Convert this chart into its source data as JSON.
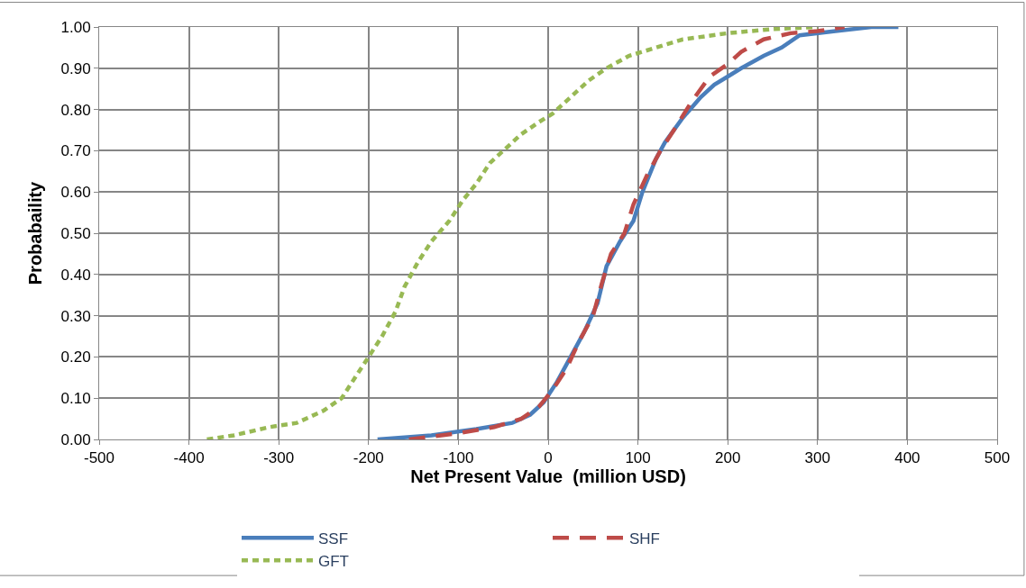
{
  "chart_data": {
    "type": "line",
    "xlabel": "Net Present Value  (million USD)",
    "ylabel": "Probabaility",
    "xlim": [
      -500,
      500
    ],
    "xticks": [
      -500,
      -400,
      -300,
      -200,
      -100,
      0,
      100,
      200,
      300,
      400,
      500
    ],
    "ylim": [
      0,
      1
    ],
    "yticks": [
      {
        "value": 0,
        "label": "0.00"
      },
      {
        "value": 0.1,
        "label": "0.10"
      },
      {
        "value": 0.2,
        "label": "0.20"
      },
      {
        "value": 0.3,
        "label": "0.30"
      },
      {
        "value": 0.4,
        "label": "0.40"
      },
      {
        "value": 0.5,
        "label": "0.50"
      },
      {
        "value": 0.6,
        "label": "0.60"
      },
      {
        "value": 0.7,
        "label": "0.70"
      },
      {
        "value": 0.8,
        "label": "0.80"
      },
      {
        "value": 0.9,
        "label": "0.90"
      },
      {
        "value": 1,
        "label": "1.00"
      }
    ],
    "grid": true,
    "legend": "bottom",
    "marker": "none",
    "series": [
      {
        "name": "SSF",
        "color": "#4a7ebb",
        "line_style": "solid",
        "x": [
          -190,
          -130,
          -80,
          -40,
          -20,
          -5,
          10,
          25,
          40,
          55,
          65,
          80,
          95,
          105,
          120,
          130,
          150,
          170,
          185,
          200,
          215,
          240,
          260,
          280,
          320,
          360,
          390
        ],
        "values": [
          0,
          0.01,
          0.025,
          0.04,
          0.06,
          0.09,
          0.14,
          0.2,
          0.26,
          0.33,
          0.42,
          0.48,
          0.53,
          0.6,
          0.68,
          0.72,
          0.78,
          0.83,
          0.86,
          0.88,
          0.9,
          0.93,
          0.95,
          0.98,
          0.99,
          1.0,
          1.0
        ]
      },
      {
        "name": "SHF",
        "color": "#be4b48",
        "line_style": "dashed",
        "x": [
          -155,
          -100,
          -60,
          -30,
          -10,
          5,
          20,
          35,
          50,
          60,
          70,
          85,
          95,
          110,
          125,
          140,
          160,
          180,
          200,
          215,
          240,
          270,
          300,
          330
        ],
        "values": [
          0,
          0.015,
          0.03,
          0.05,
          0.08,
          0.12,
          0.17,
          0.24,
          0.3,
          0.38,
          0.45,
          0.5,
          0.57,
          0.64,
          0.7,
          0.75,
          0.82,
          0.88,
          0.91,
          0.94,
          0.97,
          0.985,
          0.99,
          1.0
        ]
      },
      {
        "name": "GFT",
        "color": "#98b954",
        "line_style": "dotted",
        "x": [
          -380,
          -350,
          -310,
          -280,
          -250,
          -230,
          -215,
          -200,
          -185,
          -170,
          -160,
          -145,
          -130,
          -110,
          -95,
          -80,
          -65,
          -45,
          -30,
          -10,
          5,
          25,
          45,
          65,
          90,
          120,
          150,
          200,
          250,
          300
        ],
        "values": [
          0,
          0.01,
          0.03,
          0.04,
          0.07,
          0.1,
          0.15,
          0.2,
          0.25,
          0.31,
          0.37,
          0.43,
          0.48,
          0.53,
          0.58,
          0.62,
          0.67,
          0.71,
          0.74,
          0.77,
          0.79,
          0.83,
          0.87,
          0.9,
          0.93,
          0.95,
          0.97,
          0.985,
          0.995,
          1.0
        ]
      }
    ]
  }
}
